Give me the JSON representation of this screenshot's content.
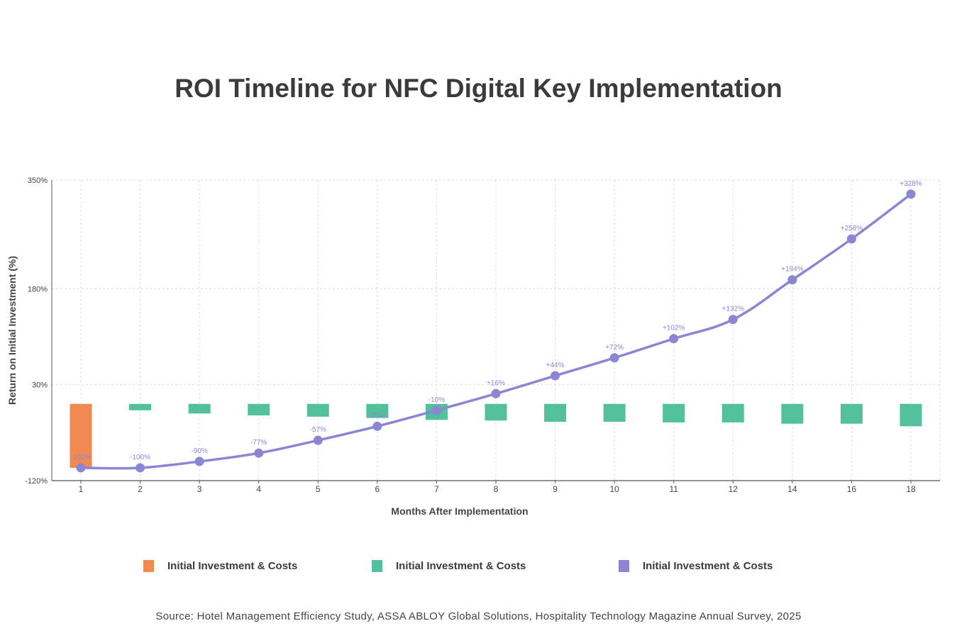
{
  "title": "ROI Timeline for NFC Digital Key Implementation",
  "source": "Source: Hotel Management Efficiency Study, ASSA ABLOY Global Solutions, Hospitality Technology Magazine Annual Survey, 2025",
  "legend": [
    {
      "label": "Initial Investment & Costs",
      "color": "#f08a50"
    },
    {
      "label": "Initial Investment & Costs",
      "color": "#52c19b"
    },
    {
      "label": "Initial Investment & Costs",
      "color": "#8a86d4"
    }
  ],
  "chart_data": {
    "type": "bar+line",
    "xlabel": "Months After Implementation",
    "ylabel": "Return on Initial Investment (%)",
    "categories": [
      "1",
      "2",
      "3",
      "4",
      "5",
      "6",
      "7",
      "8",
      "9",
      "10",
      "11",
      "12",
      "14",
      "16",
      "18"
    ],
    "y_ticks": [
      "350%",
      "180%",
      "30%",
      "-120%"
    ],
    "y_tick_values": [
      350,
      180,
      30,
      -120
    ],
    "ylim": [
      -120,
      350
    ],
    "grid": true,
    "bars": {
      "base": 0,
      "values": [
        -100,
        -10,
        -15,
        -18,
        -20,
        -22,
        -25,
        -26,
        -28,
        -28,
        -29,
        -29,
        -31,
        -31,
        -35
      ],
      "colors": [
        "#f08a50",
        "#52c19b",
        "#52c19b",
        "#52c19b",
        "#52c19b",
        "#52c19b",
        "#52c19b",
        "#52c19b",
        "#52c19b",
        "#52c19b",
        "#52c19b",
        "#52c19b",
        "#52c19b",
        "#52c19b",
        "#52c19b"
      ]
    },
    "line": {
      "values": [
        -100,
        -100,
        -90,
        -77,
        -57,
        -35,
        -10,
        16,
        44,
        72,
        102,
        132,
        194,
        258,
        328
      ],
      "labels": [
        "-100%",
        "-100%",
        "-90%",
        "-77%",
        "-57%",
        "-35%",
        "-10%",
        "+16%",
        "+44%",
        "+72%",
        "+102%",
        "+132%",
        "+194%",
        "+258%",
        "+328%"
      ],
      "color": "#8a86d4"
    },
    "gridColor": "#dddddd",
    "axisColor": "#555555"
  }
}
